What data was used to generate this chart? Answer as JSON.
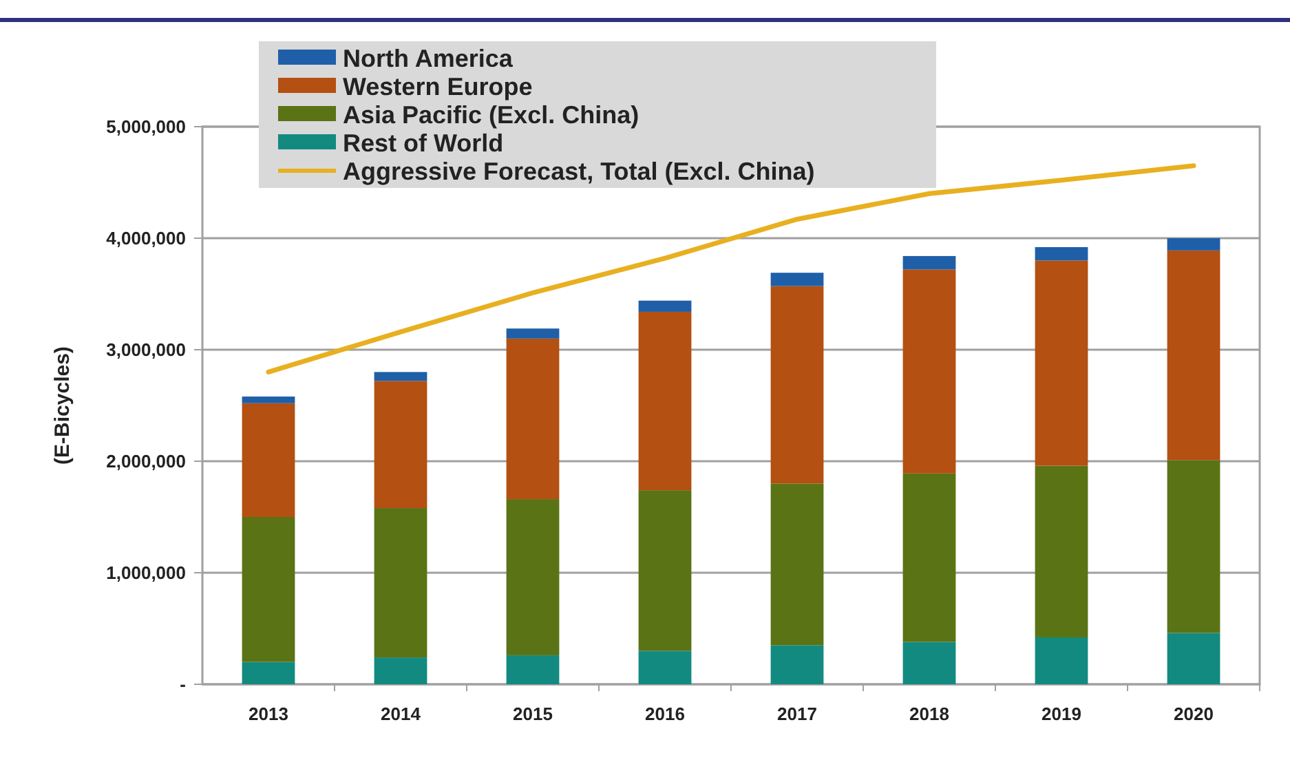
{
  "chart_data": {
    "type": "bar",
    "stacked": true,
    "ylabel": "(E-Bicycles)",
    "categories": [
      "2013",
      "2014",
      "2015",
      "2016",
      "2017",
      "2018",
      "2019",
      "2020"
    ],
    "series": [
      {
        "name": "Rest of World",
        "color": "#138a80",
        "values": [
          200000,
          240000,
          260000,
          300000,
          350000,
          380000,
          420000,
          460000
        ]
      },
      {
        "name": "Asia Pacific (Excl. China)",
        "color": "#5a7314",
        "values": [
          1300000,
          1340000,
          1400000,
          1440000,
          1450000,
          1510000,
          1540000,
          1550000
        ]
      },
      {
        "name": "Western Europe",
        "color": "#b35012",
        "values": [
          1020000,
          1140000,
          1440000,
          1600000,
          1770000,
          1830000,
          1840000,
          1880000
        ]
      },
      {
        "name": "North America",
        "color": "#1f5fa8",
        "values": [
          60000,
          80000,
          90000,
          100000,
          120000,
          120000,
          120000,
          110000
        ]
      },
      {
        "name": "Aggressive Forecast, Total (Excl. China)",
        "type": "line",
        "color": "#e8b020",
        "values": [
          2800000,
          3160000,
          3510000,
          3820000,
          4170000,
          4400000,
          4520000,
          4650000
        ]
      }
    ],
    "ylim": [
      0,
      5000000
    ],
    "yticks": [
      {
        "value": 0,
        "label": "-"
      },
      {
        "value": 1000000,
        "label": "1,000,000"
      },
      {
        "value": 2000000,
        "label": "2,000,000"
      },
      {
        "value": 3000000,
        "label": "3,000,000"
      },
      {
        "value": 4000000,
        "label": "4,000,000"
      },
      {
        "value": 5000000,
        "label": "5,000,000"
      }
    ],
    "grid": "y",
    "legend": "top left"
  }
}
